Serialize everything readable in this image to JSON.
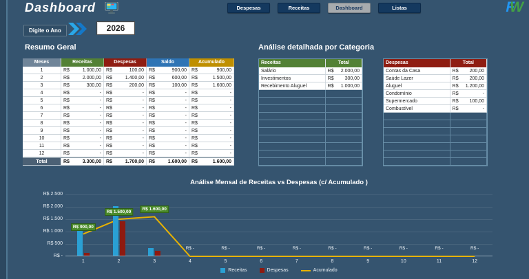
{
  "currency": "R$",
  "app": {
    "title": "Dashboard",
    "year_label": "Digite o Ano",
    "year_value": "2026",
    "logo_f": "F",
    "logo_w": "W"
  },
  "nav": {
    "buttons": [
      {
        "label": "Despesas",
        "active": false
      },
      {
        "label": "Receitas",
        "active": false
      },
      {
        "label": "Dashboard",
        "active": true
      },
      {
        "label": "Listas",
        "active": false
      }
    ]
  },
  "summary": {
    "title": "Resumo Geral",
    "headers": [
      "Meses",
      "Receitas",
      "Despesas",
      "Saldo",
      "Acumulado"
    ],
    "rows": [
      {
        "month": "1",
        "values": [
          "1.000,00",
          "100,00",
          "900,00",
          "900,00"
        ]
      },
      {
        "month": "2",
        "values": [
          "2.000,00",
          "1.400,00",
          "600,00",
          "1.500,00"
        ]
      },
      {
        "month": "3",
        "values": [
          "300,00",
          "200,00",
          "100,00",
          "1.600,00"
        ]
      },
      {
        "month": "4",
        "values": [
          "-",
          "-",
          "-",
          "-"
        ]
      },
      {
        "month": "5",
        "values": [
          "-",
          "-",
          "-",
          "-"
        ]
      },
      {
        "month": "6",
        "values": [
          "-",
          "-",
          "-",
          "-"
        ]
      },
      {
        "month": "7",
        "values": [
          "-",
          "-",
          "-",
          "-"
        ]
      },
      {
        "month": "8",
        "values": [
          "-",
          "-",
          "-",
          "-"
        ]
      },
      {
        "month": "9",
        "values": [
          "-",
          "-",
          "-",
          "-"
        ]
      },
      {
        "month": "10",
        "values": [
          "-",
          "-",
          "-",
          "-"
        ]
      },
      {
        "month": "11",
        "values": [
          "-",
          "-",
          "-",
          "-"
        ]
      },
      {
        "month": "12",
        "values": [
          "-",
          "-",
          "-",
          "-"
        ]
      }
    ],
    "total": {
      "label": "Total",
      "values": [
        "3.300,00",
        "1.700,00",
        "1.600,00",
        "1.600,00"
      ]
    }
  },
  "categories": {
    "title": "Análise detalhada por Categoria",
    "receitas": {
      "headers": [
        "Receitas",
        "Total"
      ],
      "rows": [
        {
          "name": "Salário",
          "value": "2.000,00"
        },
        {
          "name": "Investimentos",
          "value": "300,00"
        },
        {
          "name": "Recebimento Aluguel",
          "value": "1.000,00"
        }
      ],
      "empty_rows": 10
    },
    "despesas": {
      "headers": [
        "Despesas",
        "Total"
      ],
      "rows": [
        {
          "name": "Contas da Casa",
          "value": "200,00"
        },
        {
          "name": "Saúde Lazer",
          "value": "200,00"
        },
        {
          "name": "Aluguel",
          "value": "1.200,00"
        },
        {
          "name": "Condomínio",
          "value": "-"
        },
        {
          "name": "Supermercado",
          "value": "100,00"
        },
        {
          "name": "Combustível",
          "value": "-"
        }
      ],
      "empty_rows": 7
    }
  },
  "chart_data": {
    "type": "bar",
    "title": "Análise Mensal de Receitas vs Despesas (c/ Acumulado )",
    "categories": [
      "1",
      "2",
      "3",
      "4",
      "5",
      "6",
      "7",
      "8",
      "9",
      "10",
      "11",
      "12"
    ],
    "series": [
      {
        "name": "Receitas",
        "type": "bar",
        "color": "#2aa0d4",
        "values": [
          1000,
          2000,
          300,
          0,
          0,
          0,
          0,
          0,
          0,
          0,
          0,
          0
        ]
      },
      {
        "name": "Despesas",
        "type": "bar",
        "color": "#8e1a10",
        "values": [
          100,
          1400,
          200,
          0,
          0,
          0,
          0,
          0,
          0,
          0,
          0,
          0
        ]
      },
      {
        "name": "Acumulado",
        "type": "line",
        "color": "#e8b200",
        "values": [
          900,
          1500,
          1600,
          0,
          0,
          0,
          0,
          0,
          0,
          0,
          0,
          0
        ]
      }
    ],
    "point_labels": [
      "R$ 900,00",
      "R$ 1.500,00",
      "R$ 1.600,00",
      "R$ -",
      "R$ -",
      "R$ -",
      "R$ -",
      "R$ -",
      "R$ -",
      "R$ -",
      "R$ -",
      "R$ -"
    ],
    "y_ticks": [
      "R$ 2.500",
      "R$ 2.000",
      "R$ 1.500",
      "R$ 1.000",
      "R$ 500",
      "R$ -"
    ],
    "ylim": [
      0,
      2500
    ],
    "legend_position": "bottom",
    "grid": true
  },
  "theme": {
    "background": "#35546f",
    "header_gray": "#708599",
    "green": "#538135",
    "red": "#8f1d12",
    "blue": "#2e74b5",
    "amber": "#bf8f00",
    "nav_button": "#14395f",
    "nav_active": "#a7abae",
    "bar_blue": "#2aa0d4",
    "bar_red": "#8e1a10",
    "line_yellow": "#e8b200",
    "label_green": "#4a8a2a"
  }
}
